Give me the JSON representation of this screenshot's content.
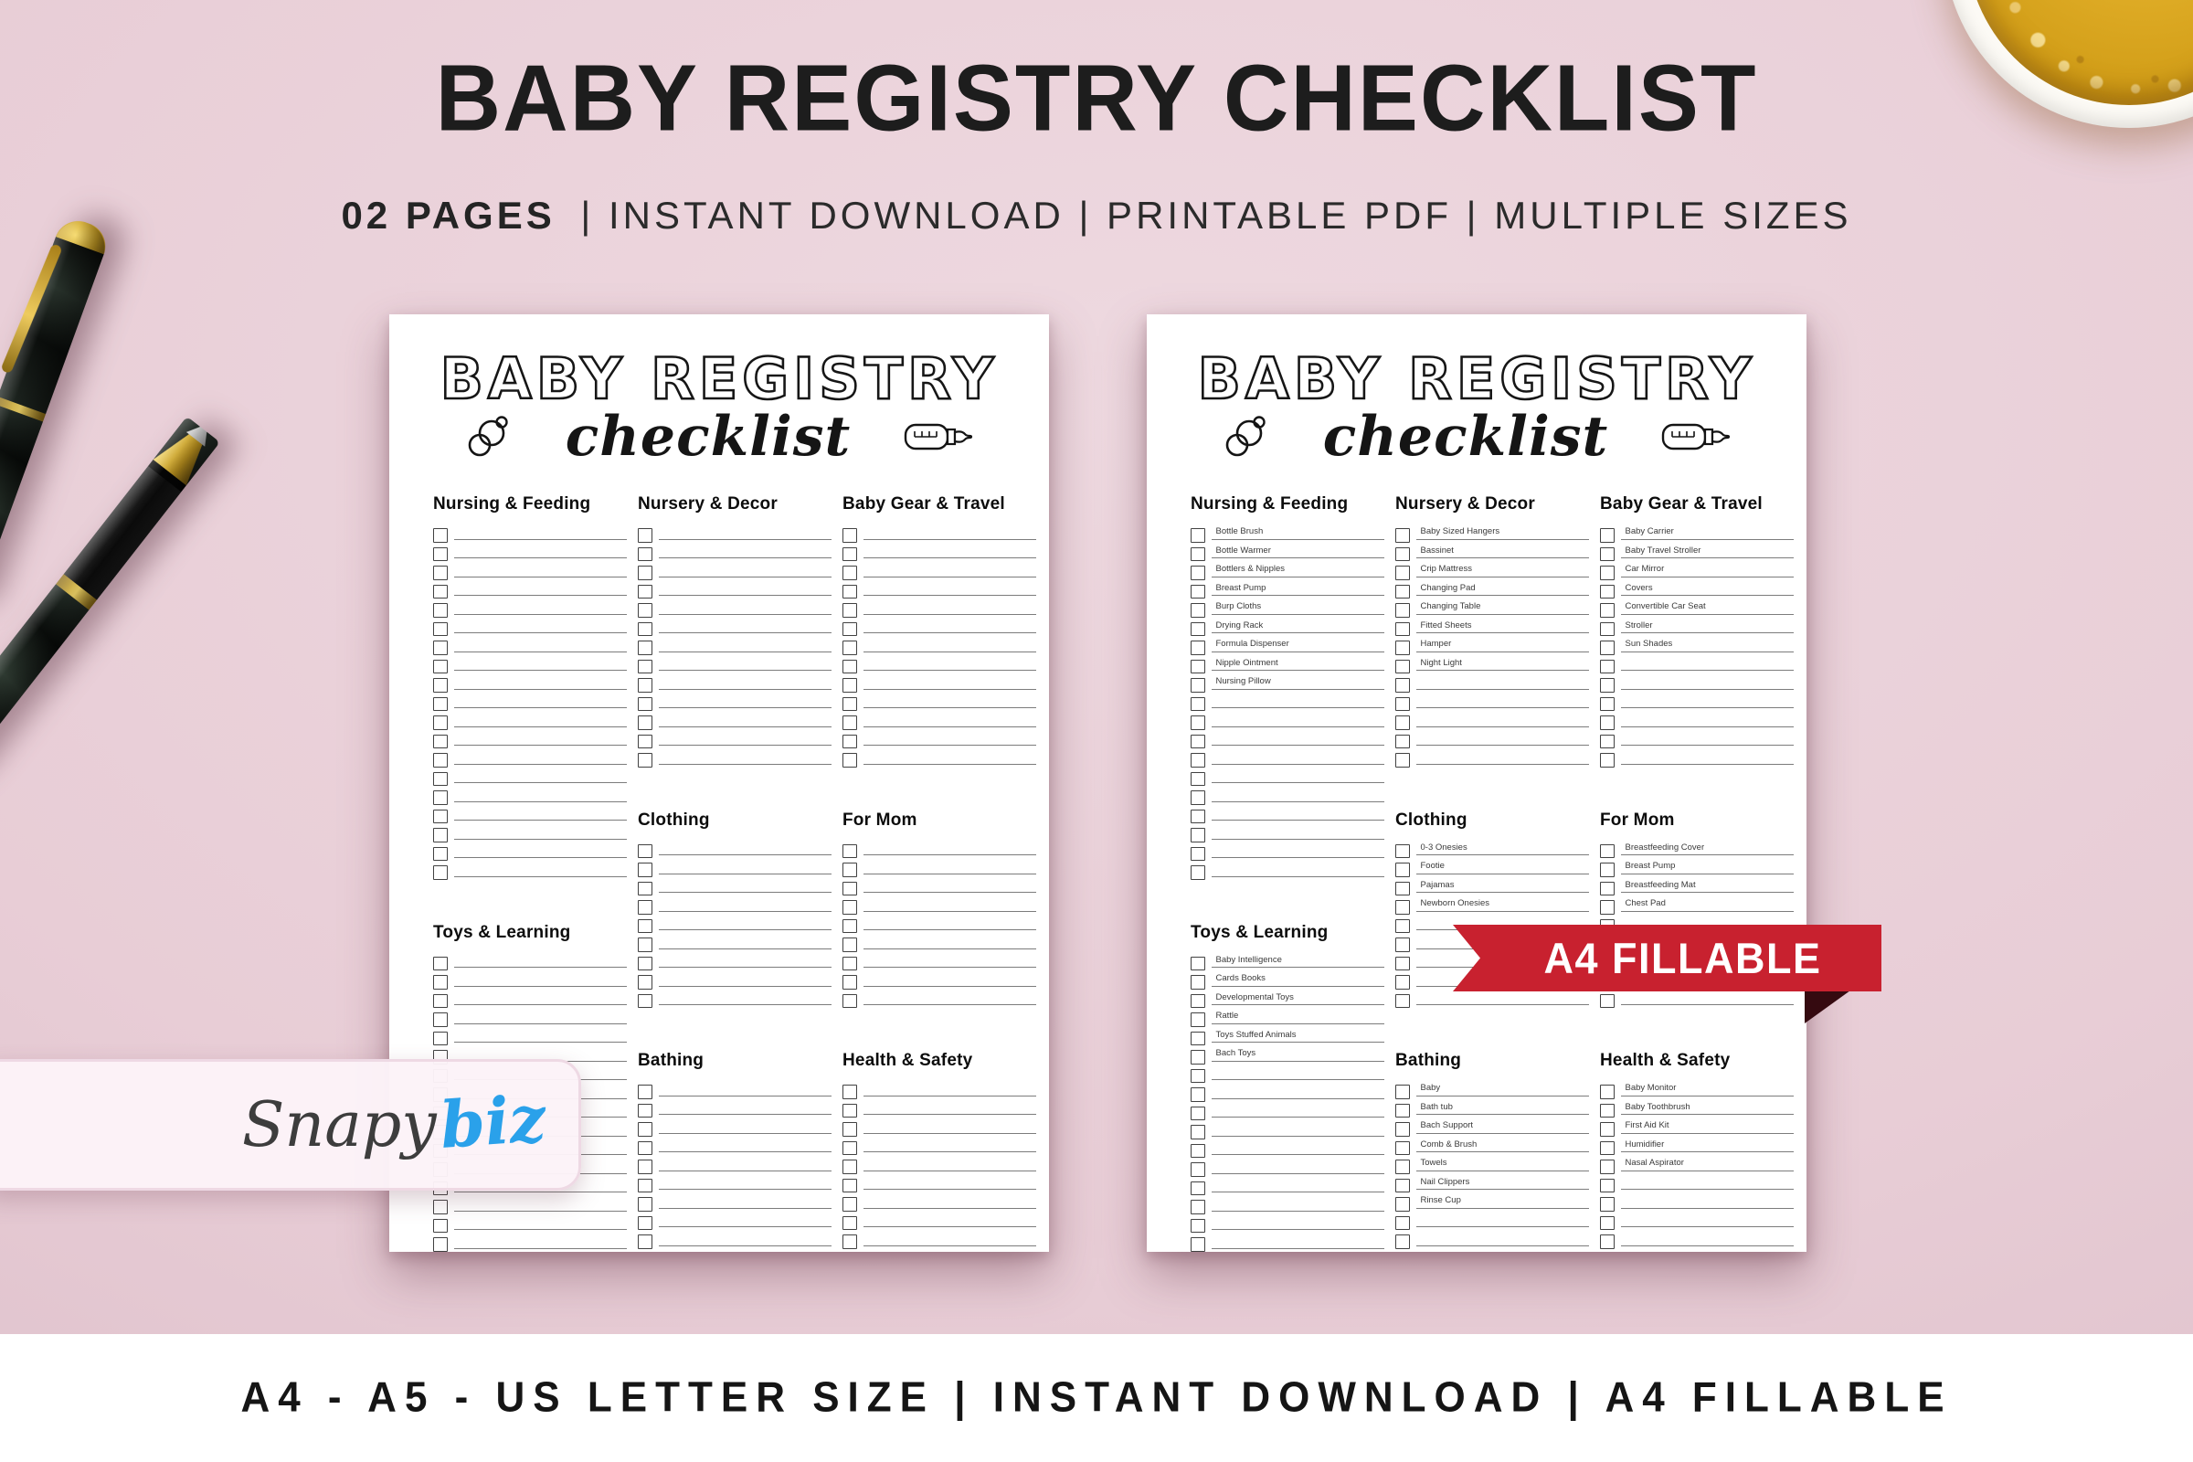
{
  "header": {
    "title": "BABY REGISTRY CHECKLIST",
    "subtitle_bold": "02 PAGES",
    "subtitle_rest": "| INSTANT DOWNLOAD | PRINTABLE PDF | MULTIPLE SIZES"
  },
  "sheet": {
    "title_line1": "BABY REGISTRY",
    "title_line2": "checklist"
  },
  "sections": {
    "nursing": {
      "title": "Nursing & Feeding",
      "rows": 19,
      "items": [
        "Bottle Brush",
        "Bottle Warmer",
        "Bottlers & Nipples",
        "Breast Pump",
        "Burp Cloths",
        "Drying Rack",
        "Formula Dispenser",
        "Nipple Ointment",
        "Nursing Pillow"
      ]
    },
    "nursery": {
      "title": "Nursery & Decor",
      "rows": 13,
      "items": [
        "Baby Sized Hangers",
        "Bassinet",
        "Crip Mattress",
        "Changing Pad",
        "Changing Table",
        "Fitted Sheets",
        "Hamper",
        "Night Light"
      ]
    },
    "gear": {
      "title": "Baby Gear & Travel",
      "rows": 13,
      "items": [
        "Baby Carrier",
        "Baby Travel Stroller",
        "Car Mirror",
        "Covers",
        "Convertible Car Seat",
        "Stroller",
        "Sun Shades"
      ]
    },
    "clothing": {
      "title": "Clothing",
      "rows": 9,
      "items": [
        "0-3 Onesies",
        "Footie",
        "Pajamas",
        "Newborn Onesies"
      ]
    },
    "mom": {
      "title": "For Mom",
      "rows": 9,
      "items": [
        "Breastfeeding Cover",
        "Breast Pump",
        "Breastfeeding Mat",
        "Chest Pad"
      ]
    },
    "toys": {
      "title": "Toys & Learning",
      "rows": 16,
      "items": [
        "Baby Intelligence",
        "Cards Books",
        "Developmental Toys",
        "Rattle",
        "Toys Stuffed Animals",
        "Bach Toys"
      ]
    },
    "bathing": {
      "title": "Bathing",
      "rows": 9,
      "items": [
        "Baby",
        "Bath tub",
        "Bach Support",
        "Comb & Brush",
        "Towels",
        "Nail Clippers",
        "Rinse Cup"
      ]
    },
    "health": {
      "title": "Health & Safety",
      "rows": 9,
      "items": [
        "Baby Monitor",
        "Baby Toothbrush",
        "First Aid Kit",
        "Humidifier",
        "Nasal Aspirator"
      ]
    }
  },
  "banner": {
    "label": "A4 FILLABLE",
    "color": "#c8212f"
  },
  "logo": {
    "part1": "Snapy",
    "part2": "biz",
    "accent_color": "#2aa1ea"
  },
  "footer": {
    "text": "A4 - A5 - US LETTER SIZE | INSTANT DOWNLOAD | A4 FILLABLE"
  },
  "colors": {
    "background": "#e8cdd6",
    "page": "#ffffff",
    "banner_red": "#c8212f",
    "logo_blue": "#2aa1ea",
    "footer_bg": "#ffffff"
  }
}
